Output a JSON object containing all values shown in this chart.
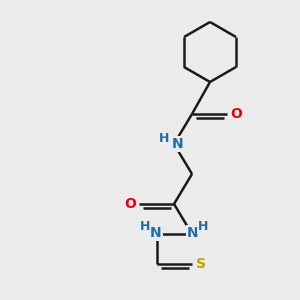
{
  "background_color": "#ebebeb",
  "bond_color": "#1a1a1a",
  "N_color": "#1d6ea8",
  "O_color": "#e8000b",
  "S_color": "#c8a000",
  "figsize": [
    3.0,
    3.0
  ],
  "dpi": 100,
  "xlim": [
    0,
    300
  ],
  "ylim": [
    0,
    300
  ]
}
